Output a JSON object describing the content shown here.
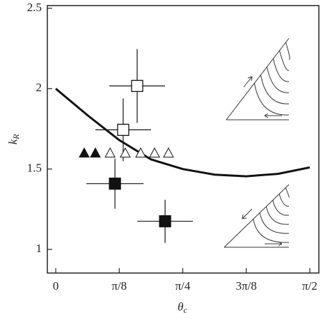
{
  "chart_data": {
    "type": "scatter",
    "x_label_base": "θ",
    "x_label_sub": "c",
    "y_label_base": "k",
    "y_label_sub": "R",
    "xlim": [
      -0.052,
      1.627
    ],
    "ylim": [
      0.853,
      2.517
    ],
    "xticks": [
      {
        "value": 0,
        "label": "0"
      },
      {
        "value": 0.3927,
        "label": "π/8"
      },
      {
        "value": 0.7854,
        "label": "π/4"
      },
      {
        "value": 1.1781,
        "label": "3π/8"
      },
      {
        "value": 1.5708,
        "label": "π/2"
      }
    ],
    "yticks": [
      1,
      1.5,
      2,
      2.5
    ],
    "series": [
      {
        "marker": "line",
        "color": "#111111",
        "x": [
          0,
          0.196,
          0.3927,
          0.589,
          0.7854,
          0.982,
          1.1781,
          1.374,
          1.5708
        ],
        "values": [
          2.0,
          1.835,
          1.68,
          1.56,
          1.5,
          1.465,
          1.455,
          1.47,
          1.51
        ]
      },
      {
        "marker": "square-open",
        "color": "#111111",
        "x": [
          0.5035,
          0.417
        ],
        "values": [
          2.017,
          1.744
        ],
        "xerr": [
          0.172,
          0.172
        ],
        "yerr": [
          0.23,
          0.195
        ]
      },
      {
        "marker": "square-filled",
        "color": "#111111",
        "x": [
          0.366,
          0.676
        ],
        "values": [
          1.409,
          1.175
        ],
        "xerr": [
          0.177,
          0.172
        ],
        "yerr": [
          0.156,
          0.134
        ]
      },
      {
        "marker": "triangle-filled",
        "color": "#111111",
        "x": [
          0.176,
          0.245
        ],
        "values": [
          1.6,
          1.6
        ]
      },
      {
        "marker": "triangle-open",
        "color": "#111111",
        "x": [
          0.336,
          0.43,
          0.525,
          0.611,
          0.697
        ],
        "values": [
          1.6,
          1.6,
          1.6,
          1.6,
          1.6
        ]
      }
    ]
  }
}
